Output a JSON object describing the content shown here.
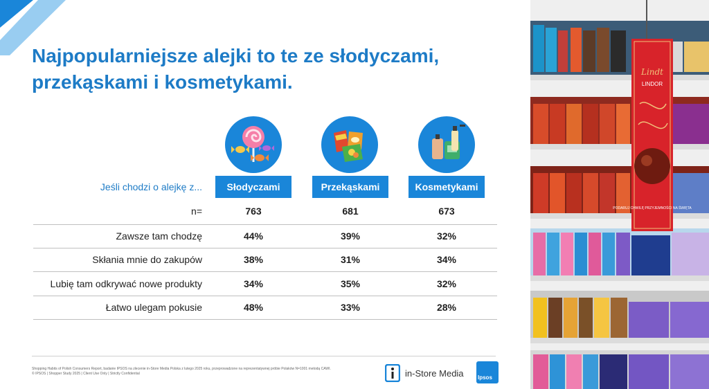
{
  "title": {
    "line1": "Najpopularniejsze alejki to te ze słodyczami,",
    "line2": "przekąskami i kosmetykami."
  },
  "table": {
    "question": "Jeśli chodzi o alejkę z...",
    "columns": [
      {
        "label": "Słodyczami",
        "icon": "candy-icon"
      },
      {
        "label": "Przekąskami",
        "icon": "snacks-icon"
      },
      {
        "label": "Kosmetykami",
        "icon": "cosmetics-icon"
      }
    ],
    "n_row": {
      "label": "n=",
      "values": [
        "763",
        "681",
        "673"
      ]
    },
    "rows": [
      {
        "label": "Zawsze tam chodzę",
        "values": [
          "44%",
          "39%",
          "32%"
        ]
      },
      {
        "label": "Skłania mnie do zakupów",
        "values": [
          "38%",
          "31%",
          "34%"
        ]
      },
      {
        "label": "Lubię tam odkrywać nowe produkty",
        "values": [
          "34%",
          "35%",
          "32%"
        ]
      },
      {
        "label": "Łatwo ulegam pokusie",
        "values": [
          "48%",
          "33%",
          "28%"
        ]
      }
    ]
  },
  "footer": {
    "line1": "Shopping Habits of Polish Consumers Report, badanie IPSOS na zlecenie in-Store Media Polska z lutego 2025 roku, przeprowadzone na reprezentatywnej próbie Polaków N=1001 metodą CAWI.",
    "line2": "© IPSOS | Shopper Study 2025 | Client Use Only | Strictly Confidential",
    "instore_logo": "in-Store Media",
    "ipsos_logo": "Ipsos"
  },
  "photo": {
    "banner_brand": "Lindt",
    "banner_product": "LINDOR",
    "banner_slogan": "PODARUJ CHWILĘ PRZYJEMNOŚCI NA ŚWIĘTA"
  },
  "colors": {
    "accent": "#1a86d9",
    "title": "#1d7bc6",
    "rule": "#bfbfbf",
    "banner": "#d8232a"
  }
}
